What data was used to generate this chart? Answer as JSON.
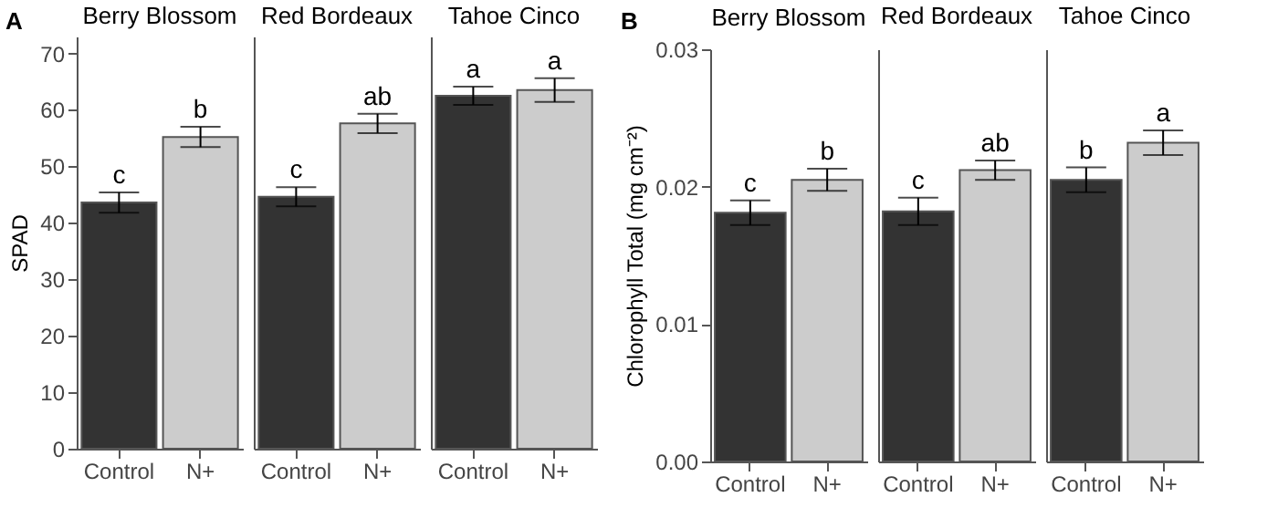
{
  "chart_data": [
    {
      "type": "bar",
      "title": "Berry Blossom",
      "ylabel": "SPAD",
      "categories": [
        "Control",
        "N+"
      ],
      "values": [
        43.6,
        55.2
      ],
      "errors": [
        1.8,
        1.8
      ],
      "colors": [
        "#333333",
        "#cccccc"
      ],
      "ylim": [
        0,
        73
      ],
      "yticks": [
        0,
        10,
        20,
        30,
        40,
        50,
        60,
        70
      ],
      "annotations": [
        "A",
        {
          "text": "c",
          "x": "Control",
          "y": 45.4
        },
        {
          "text": "b",
          "x": "N+",
          "y": 57
        }
      ]
    },
    {
      "type": "bar",
      "title": "Red Bordeaux",
      "categories": [
        "Control",
        "N+"
      ],
      "values": [
        44.6,
        57.6
      ],
      "errors": [
        1.7,
        1.7
      ],
      "colors": [
        "#333333",
        "#cccccc"
      ],
      "ylim": [
        0,
        73
      ],
      "tick_labels": "x",
      "annotations": [
        {
          "text": "c",
          "x": "Control",
          "y": 46.3
        },
        {
          "text": "ab",
          "x": "N+",
          "y": 59.3
        }
      ]
    },
    {
      "type": "bar",
      "title": "Tahoe Cinco",
      "categories": [
        "Control",
        "N+"
      ],
      "values": [
        62.5,
        63.5
      ],
      "errors": [
        1.6,
        2.1
      ],
      "colors": [
        "#333333",
        "#cccccc"
      ],
      "ylim": [
        0,
        73
      ],
      "tick_labels": "x",
      "annotations": [
        {
          "text": "a",
          "x": "Control",
          "y": 64.1
        },
        {
          "text": "a",
          "x": "N+",
          "y": 65.6
        }
      ]
    },
    {
      "type": "bar",
      "title": "Berry Blossom",
      "ylabel": "Chlorophyll Total (mg cm⁻²)",
      "categories": [
        "Control",
        "N+"
      ],
      "values": [
        0.0181,
        0.0205
      ],
      "errors": [
        0.0009,
        0.0008
      ],
      "colors": [
        "#333333",
        "#cccccc"
      ],
      "ylim": [
        0,
        0.03
      ],
      "yticks": [
        {
          "value": 0,
          "label": "0.00"
        },
        {
          "value": 0.01,
          "label": "0.01"
        },
        {
          "value": 0.02,
          "label": "0.02"
        },
        {
          "value": 0.03,
          "label": "0.03"
        }
      ],
      "annotations": [
        "B",
        {
          "text": "c",
          "x": "Control",
          "y": 0.019
        },
        {
          "text": "b",
          "x": "N+",
          "y": 0.0213
        }
      ]
    },
    {
      "type": "bar",
      "title": "Red Bordeaux",
      "categories": [
        "Control",
        "N+"
      ],
      "values": [
        0.0182,
        0.0212
      ],
      "errors": [
        0.001,
        0.0007
      ],
      "colors": [
        "#333333",
        "#cccccc"
      ],
      "ylim": [
        0,
        0.03
      ],
      "tick_labels": "x",
      "annotations": [
        {
          "text": "c",
          "x": "Control",
          "y": 0.0192
        },
        {
          "text": "ab",
          "x": "N+",
          "y": 0.0219
        }
      ]
    },
    {
      "type": "bar",
      "title": "Tahoe Cinco",
      "categories": [
        "Control",
        "N+"
      ],
      "values": [
        0.0205,
        0.0232
      ],
      "errors": [
        0.0009,
        0.0009
      ],
      "colors": [
        "#333333",
        "#cccccc"
      ],
      "ylim": [
        0,
        0.03
      ],
      "tick_labels": "x",
      "annotations": [
        {
          "text": "b",
          "x": "Control",
          "y": 0.0214
        },
        {
          "text": "a",
          "x": "N+",
          "y": 0.0241
        }
      ]
    }
  ]
}
